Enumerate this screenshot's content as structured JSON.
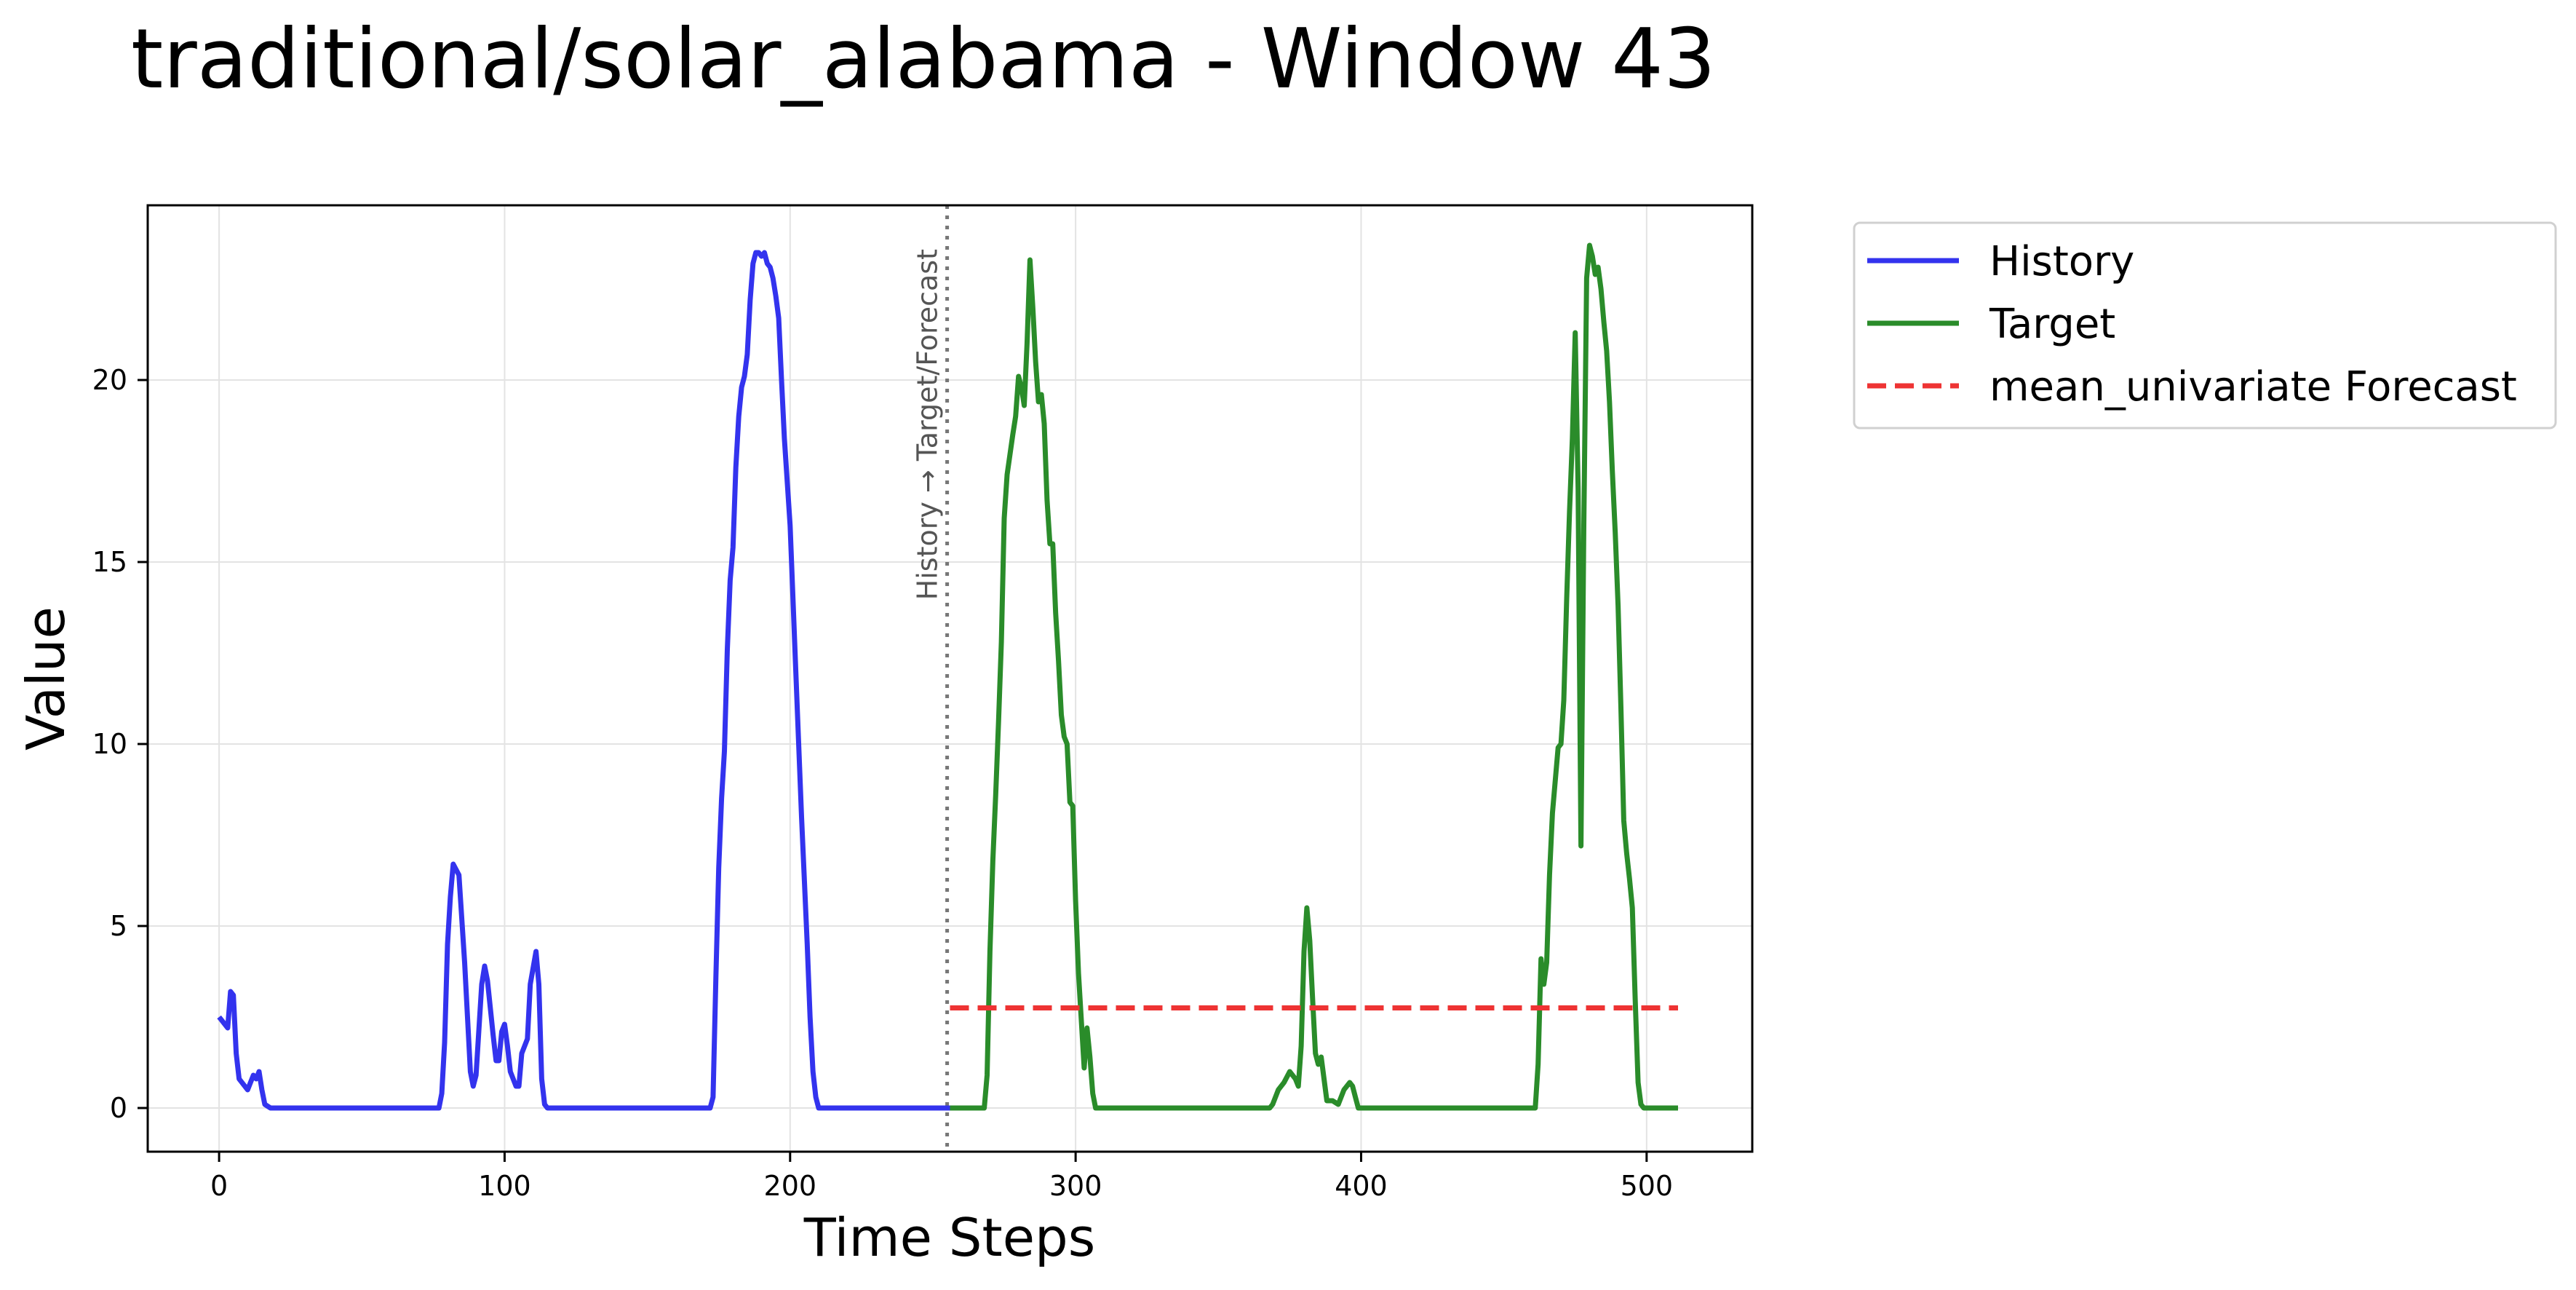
{
  "chart_data": {
    "type": "line",
    "title": "traditional/solar_alabama - Window 43",
    "xlabel": "Time Steps",
    "ylabel": "Value",
    "xlim": [
      -25,
      537
    ],
    "ylim": [
      -1.2,
      24.8
    ],
    "xticks": [
      0,
      100,
      200,
      300,
      400,
      500
    ],
    "yticks": [
      0,
      5,
      10,
      15,
      20
    ],
    "grid": true,
    "legend_position": "outside-top-right",
    "annotation": {
      "text": "History → Target/Forecast",
      "x": 255
    },
    "series": [
      {
        "name": "History",
        "color": "#3333ee",
        "style": "solid",
        "points": [
          [
            0,
            2.5
          ],
          [
            3,
            2.2
          ],
          [
            4,
            3.2
          ],
          [
            5,
            3.1
          ],
          [
            6,
            1.5
          ],
          [
            7,
            0.8
          ],
          [
            10,
            0.5
          ],
          [
            12,
            0.9
          ],
          [
            13,
            0.8
          ],
          [
            14,
            1.0
          ],
          [
            15,
            0.5
          ],
          [
            16,
            0.1
          ],
          [
            18,
            0
          ],
          [
            77,
            0
          ],
          [
            78,
            0.4
          ],
          [
            79,
            1.8
          ],
          [
            80,
            4.5
          ],
          [
            81,
            5.8
          ],
          [
            82,
            6.7
          ],
          [
            84,
            6.4
          ],
          [
            86,
            4.0
          ],
          [
            88,
            1.0
          ],
          [
            89,
            0.6
          ],
          [
            90,
            0.9
          ],
          [
            92,
            3.4
          ],
          [
            93,
            3.9
          ],
          [
            94,
            3.5
          ],
          [
            96,
            2.0
          ],
          [
            97,
            1.3
          ],
          [
            98,
            1.3
          ],
          [
            99,
            2.1
          ],
          [
            100,
            2.3
          ],
          [
            101,
            1.7
          ],
          [
            102,
            1.0
          ],
          [
            104,
            0.6
          ],
          [
            105,
            0.6
          ],
          [
            106,
            1.5
          ],
          [
            108,
            1.9
          ],
          [
            109,
            3.4
          ],
          [
            111,
            4.3
          ],
          [
            112,
            3.4
          ],
          [
            113,
            0.8
          ],
          [
            114,
            0.1
          ],
          [
            115,
            0
          ],
          [
            172,
            0
          ],
          [
            173,
            0.3
          ],
          [
            174,
            3.6
          ],
          [
            175,
            6.6
          ],
          [
            176,
            8.5
          ],
          [
            177,
            9.8
          ],
          [
            178,
            12.6
          ],
          [
            179,
            14.5
          ],
          [
            180,
            15.4
          ],
          [
            181,
            17.6
          ],
          [
            182,
            19.0
          ],
          [
            183,
            19.8
          ],
          [
            184,
            20.1
          ],
          [
            185,
            20.7
          ],
          [
            186,
            22.2
          ],
          [
            187,
            23.2
          ],
          [
            188,
            23.5
          ],
          [
            189,
            23.5
          ],
          [
            190,
            23.4
          ],
          [
            191,
            23.5
          ],
          [
            192,
            23.2
          ],
          [
            193,
            23.1
          ],
          [
            194,
            22.8
          ],
          [
            195,
            22.3
          ],
          [
            196,
            21.7
          ],
          [
            197,
            20.0
          ],
          [
            198,
            18.4
          ],
          [
            200,
            16.0
          ],
          [
            202,
            12.0
          ],
          [
            204,
            8.0
          ],
          [
            206,
            4.5
          ],
          [
            207,
            2.5
          ],
          [
            208,
            1.0
          ],
          [
            209,
            0.3
          ],
          [
            210,
            0
          ],
          [
            256,
            0
          ]
        ]
      },
      {
        "name": "Target",
        "color": "#2a8c2a",
        "style": "solid",
        "points": [
          [
            256,
            0
          ],
          [
            268,
            0
          ],
          [
            269,
            0.9
          ],
          [
            270,
            4.3
          ],
          [
            271,
            6.8
          ],
          [
            272,
            8.6
          ],
          [
            273,
            10.6
          ],
          [
            274,
            12.8
          ],
          [
            275,
            16.2
          ],
          [
            276,
            17.4
          ],
          [
            278,
            18.5
          ],
          [
            279,
            19.0
          ],
          [
            280,
            20.1
          ],
          [
            281,
            19.8
          ],
          [
            282,
            19.3
          ],
          [
            283,
            21.0
          ],
          [
            284,
            23.3
          ],
          [
            285,
            22.0
          ],
          [
            286,
            20.5
          ],
          [
            287,
            19.4
          ],
          [
            288,
            19.6
          ],
          [
            289,
            18.8
          ],
          [
            290,
            16.7
          ],
          [
            291,
            15.5
          ],
          [
            292,
            15.5
          ],
          [
            293,
            13.6
          ],
          [
            294,
            12.3
          ],
          [
            295,
            10.8
          ],
          [
            296,
            10.2
          ],
          [
            297,
            10.0
          ],
          [
            298,
            8.4
          ],
          [
            299,
            8.3
          ],
          [
            300,
            5.7
          ],
          [
            301,
            3.7
          ],
          [
            302,
            2.4
          ],
          [
            303,
            1.1
          ],
          [
            304,
            2.2
          ],
          [
            305,
            1.4
          ],
          [
            306,
            0.4
          ],
          [
            307,
            0
          ],
          [
            368,
            0
          ],
          [
            369,
            0.1
          ],
          [
            371,
            0.5
          ],
          [
            373,
            0.7
          ],
          [
            375,
            1.0
          ],
          [
            377,
            0.8
          ],
          [
            378,
            0.6
          ],
          [
            379,
            1.7
          ],
          [
            380,
            4.3
          ],
          [
            381,
            5.5
          ],
          [
            382,
            4.6
          ],
          [
            383,
            3.0
          ],
          [
            384,
            1.5
          ],
          [
            385,
            1.2
          ],
          [
            386,
            1.4
          ],
          [
            387,
            0.8
          ],
          [
            388,
            0.2
          ],
          [
            390,
            0.2
          ],
          [
            392,
            0.1
          ],
          [
            394,
            0.5
          ],
          [
            396,
            0.7
          ],
          [
            397,
            0.6
          ],
          [
            398,
            0.3
          ],
          [
            399,
            0
          ],
          [
            461,
            0
          ],
          [
            462,
            1.2
          ],
          [
            463,
            4.1
          ],
          [
            464,
            3.4
          ],
          [
            465,
            4.0
          ],
          [
            466,
            6.4
          ],
          [
            467,
            8.1
          ],
          [
            468,
            9.0
          ],
          [
            469,
            9.9
          ],
          [
            470,
            10.0
          ],
          [
            471,
            11.2
          ],
          [
            472,
            14.0
          ],
          [
            473,
            16.4
          ],
          [
            474,
            18.4
          ],
          [
            475,
            21.3
          ],
          [
            476,
            17.0
          ],
          [
            477,
            7.2
          ],
          [
            478,
            16.0
          ],
          [
            479,
            22.8
          ],
          [
            480,
            23.7
          ],
          [
            481,
            23.4
          ],
          [
            482,
            22.9
          ],
          [
            483,
            23.1
          ],
          [
            484,
            22.5
          ],
          [
            485,
            21.6
          ],
          [
            486,
            20.8
          ],
          [
            487,
            19.4
          ],
          [
            488,
            17.5
          ],
          [
            489,
            15.8
          ],
          [
            490,
            13.8
          ],
          [
            491,
            11.0
          ],
          [
            492,
            7.9
          ],
          [
            493,
            7.0
          ],
          [
            494,
            6.3
          ],
          [
            495,
            5.5
          ],
          [
            496,
            3.0
          ],
          [
            497,
            0.7
          ],
          [
            498,
            0.1
          ],
          [
            499,
            0
          ],
          [
            511,
            0
          ]
        ]
      },
      {
        "name": "mean_univariate Forecast",
        "color": "#ee3333",
        "style": "dashed",
        "points": [
          [
            256,
            2.75
          ],
          [
            511,
            2.75
          ]
        ]
      }
    ]
  }
}
